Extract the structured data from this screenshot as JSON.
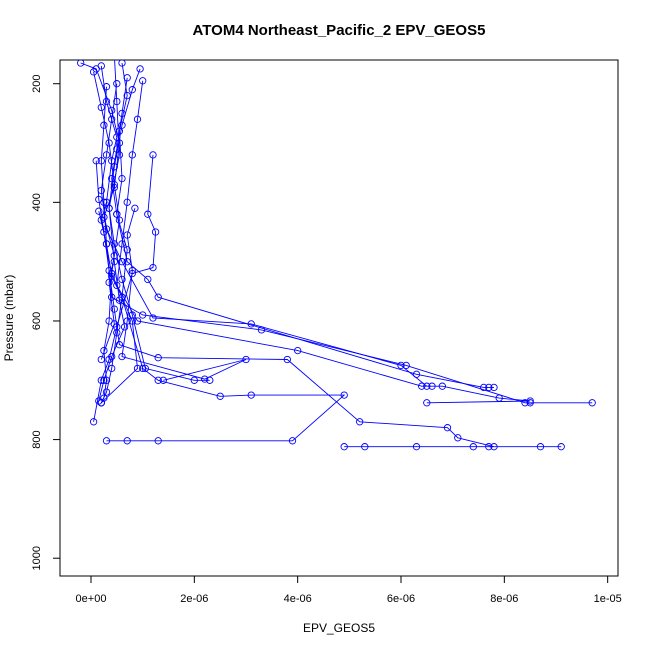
{
  "chart_data": {
    "type": "scatter",
    "title": "ATOM4 Northeast_Pacific_2 EPV_GEOS5",
    "xlabel": "EPV_GEOS5",
    "ylabel": "Pressure (mbar)",
    "xlim": [
      -6e-07,
      1.02e-05
    ],
    "ylim": [
      1030,
      160
    ],
    "y_reversed": true,
    "x_ticks": [
      0,
      2e-06,
      4e-06,
      6e-06,
      8e-06,
      1e-05
    ],
    "x_tick_labels": [
      "0e+00",
      "2e-06",
      "4e-06",
      "6e-06",
      "8e-06",
      "1e-05"
    ],
    "y_ticks": [
      200,
      400,
      600,
      800,
      1000
    ],
    "y_tick_labels": [
      "200",
      "400",
      "600",
      "800",
      "1000"
    ],
    "grid": false,
    "legend": "none",
    "series_color": "#0000ff",
    "marker": "open-circle",
    "series": [
      {
        "points": [
          [
            2e-07,
            170
          ],
          [
            3e-07,
            230
          ],
          [
            5e-07,
            290
          ],
          [
            4e-07,
            330
          ],
          [
            3e-07,
            400
          ],
          [
            2e-07,
            430
          ],
          [
            4e-07,
            520
          ],
          [
            3.5e-07,
            600
          ],
          [
            2.5e-07,
            650
          ],
          [
            3e-07,
            700
          ],
          [
            2.5e-07,
            730
          ],
          [
            2e-07,
            738
          ]
        ]
      },
      {
        "points": [
          [
            6e-07,
            165
          ],
          [
            7e-07,
            220
          ],
          [
            5.5e-07,
            280
          ],
          [
            6e-07,
            360
          ],
          [
            5e-07,
            420
          ],
          [
            7e-07,
            480
          ],
          [
            6e-07,
            560
          ],
          [
            5e-07,
            620
          ],
          [
            4e-07,
            680
          ],
          [
            3e-07,
            720
          ],
          [
            2e-07,
            738
          ]
        ]
      },
      {
        "points": [
          [
            5e-08,
            180
          ],
          [
            2e-07,
            240
          ],
          [
            3.5e-07,
            300
          ],
          [
            4.5e-07,
            370
          ],
          [
            5.5e-07,
            430
          ],
          [
            4e-07,
            520
          ],
          [
            8e-07,
            600
          ],
          [
            9e-07,
            680
          ],
          [
            2e-07,
            738
          ]
        ]
      },
      {
        "points": [
          [
            9.5e-07,
            175
          ],
          [
            8e-07,
            210
          ],
          [
            6e-07,
            270
          ],
          [
            4.5e-07,
            340
          ],
          [
            3.5e-07,
            410
          ],
          [
            4.5e-07,
            470
          ],
          [
            6e-07,
            530
          ],
          [
            8e-07,
            590
          ],
          [
            1.05e-06,
            680
          ],
          [
            2e-06,
            700
          ],
          [
            2.3e-06,
            700
          ]
        ]
      },
      {
        "points": [
          [
            5e-07,
            200
          ],
          [
            4e-07,
            260
          ],
          [
            3e-07,
            320
          ],
          [
            2e-07,
            380
          ],
          [
            3e-07,
            445
          ],
          [
            6e-07,
            500
          ],
          [
            1.2e-06,
            595
          ],
          [
            3.1e-06,
            605
          ],
          [
            6e-06,
            675
          ],
          [
            6.5e-06,
            710
          ]
        ]
      },
      {
        "points": [
          [
            7e-07,
            190
          ],
          [
            6e-07,
            250
          ],
          [
            5e-07,
            310
          ],
          [
            4e-07,
            360
          ],
          [
            5e-07,
            420
          ],
          [
            7e-07,
            500
          ],
          [
            1.1e-06,
            530
          ],
          [
            1.3e-06,
            560
          ],
          [
            6.3e-06,
            690
          ],
          [
            7.6e-06,
            712
          ],
          [
            7.7e-06,
            712
          ],
          [
            7.8e-06,
            712
          ]
        ]
      },
      {
        "points": [
          [
            3e-07,
            205
          ],
          [
            2.5e-07,
            270
          ],
          [
            2e-07,
            330
          ],
          [
            2.5e-07,
            400
          ],
          [
            3e-07,
            470
          ],
          [
            4e-07,
            560
          ],
          [
            1e-06,
            590
          ],
          [
            3.3e-06,
            615
          ],
          [
            6.1e-06,
            675
          ],
          [
            8.4e-06,
            738
          ],
          [
            8.5e-06,
            738
          ],
          [
            9.7e-06,
            738
          ]
        ]
      },
      {
        "points": [
          [
            1e-06,
            195
          ],
          [
            9e-07,
            260
          ],
          [
            8e-07,
            320
          ],
          [
            7e-07,
            400
          ],
          [
            6e-07,
            470
          ],
          [
            5e-07,
            540
          ],
          [
            9e-07,
            600
          ],
          [
            4e-06,
            650
          ],
          [
            6.4e-06,
            710
          ],
          [
            6.6e-06,
            710
          ],
          [
            6.8e-06,
            710
          ],
          [
            7.9e-06,
            730
          ],
          [
            8.5e-06,
            735
          ],
          [
            6.5e-06,
            738
          ]
        ]
      },
      {
        "points": [
          [
            1e-07,
            330
          ],
          [
            1.5e-07,
            395
          ],
          [
            2.5e-07,
            450
          ],
          [
            3.5e-07,
            515
          ],
          [
            4.5e-07,
            580
          ],
          [
            5.5e-07,
            640
          ],
          [
            1.3e-06,
            662
          ],
          [
            3.8e-06,
            665
          ],
          [
            5.2e-06,
            770
          ],
          [
            6.9e-06,
            780
          ],
          [
            7.1e-06,
            797
          ],
          [
            7.8e-06,
            812
          ],
          [
            7.4e-06,
            812
          ],
          [
            7.7e-06,
            812
          ],
          [
            8.7e-06,
            812
          ],
          [
            9.1e-06,
            812
          ],
          [
            5.3e-06,
            812
          ],
          [
            6.3e-06,
            812
          ],
          [
            4.9e-06,
            812
          ]
        ]
      },
      {
        "points": [
          [
            1.5e-07,
            415
          ],
          [
            3e-07,
            470
          ],
          [
            4e-07,
            525
          ],
          [
            6e-07,
            560
          ],
          [
            1e-06,
            680
          ],
          [
            1.3e-06,
            700
          ],
          [
            2.5e-06,
            727
          ],
          [
            3.1e-06,
            725
          ],
          [
            4.9e-06,
            725
          ],
          [
            3.9e-06,
            802
          ],
          [
            1.3e-06,
            802
          ],
          [
            7e-07,
            802
          ],
          [
            3e-07,
            802
          ]
        ]
      },
      {
        "points": [
          [
            1.2e-06,
            320
          ],
          [
            1.1e-06,
            420
          ],
          [
            1.25e-06,
            450
          ],
          [
            1.2e-06,
            510
          ],
          [
            8e-07,
            520
          ],
          [
            5e-07,
            610
          ],
          [
            3.5e-07,
            665
          ],
          [
            2e-07,
            700
          ],
          [
            5e-08,
            770
          ]
        ]
      },
      {
        "points": [
          [
            8.5e-07,
            410
          ],
          [
            7e-07,
            455
          ],
          [
            8e-07,
            515
          ],
          [
            7e-07,
            600
          ],
          [
            6e-07,
            660
          ],
          [
            2.2e-06,
            698
          ],
          [
            3e-06,
            665
          ],
          [
            1.4e-06,
            700
          ]
        ]
      },
      {
        "points": [
          [
            4.5e-07,
            150
          ],
          [
            5e-07,
            230
          ],
          [
            5.5e-07,
            320
          ],
          [
            3.5e-07,
            410
          ],
          [
            4.5e-07,
            500
          ],
          [
            5.5e-07,
            565
          ],
          [
            6.5e-07,
            610
          ],
          [
            4e-07,
            660
          ],
          [
            2.5e-07,
            700
          ],
          [
            1.5e-07,
            735
          ]
        ]
      },
      {
        "points": [
          [
            -2e-07,
            165
          ],
          [
            1e-07,
            175
          ],
          [
            4e-07,
            245
          ],
          [
            5.5e-07,
            300
          ],
          [
            4.5e-07,
            375
          ],
          [
            2.5e-07,
            425
          ],
          [
            4.5e-07,
            490
          ],
          [
            3.5e-07,
            535
          ],
          [
            4.5e-07,
            605
          ],
          [
            2e-07,
            665
          ]
        ]
      }
    ]
  }
}
